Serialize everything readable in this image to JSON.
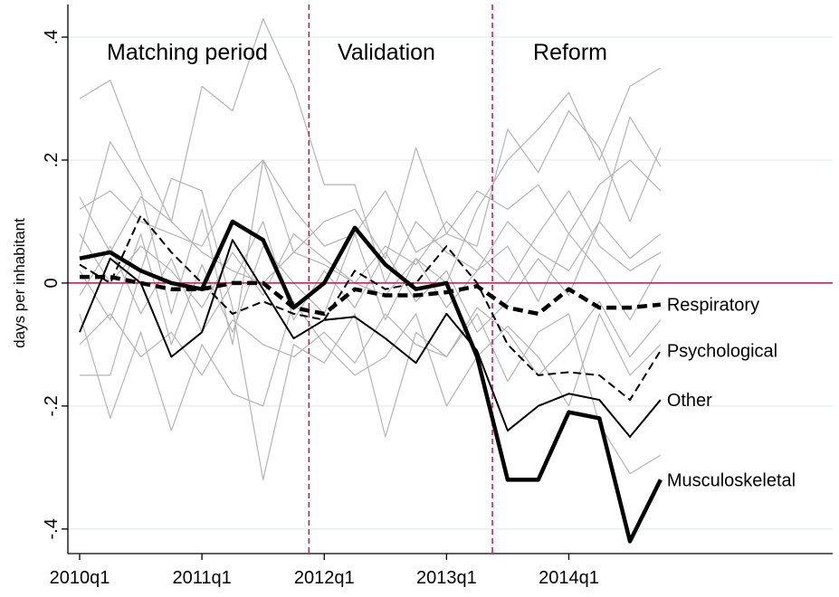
{
  "chart_data": {
    "type": "line",
    "y_label": "days per inhabitant",
    "categories": [
      "2010q1",
      null,
      null,
      null,
      "2011q1",
      null,
      null,
      null,
      "2012q1",
      null,
      null,
      null,
      "2013q1",
      null,
      null,
      null,
      "2014q1",
      null,
      null,
      null
    ],
    "ylim": [
      -0.44,
      0.453
    ],
    "yticks": [
      {
        "value": 0.4,
        "label": ".4"
      },
      {
        "value": 0.2,
        "label": ".2"
      },
      0,
      {
        "value": -0.2,
        "label": "-.2"
      },
      {
        "value": -0.4,
        "label": "-.4"
      }
    ],
    "grid": true,
    "zero_line_color": "#c8104e",
    "vlines": [
      7,
      13
    ],
    "annotations": [
      "Matching period",
      "Validation",
      "Reform"
    ],
    "series": [
      {
        "name": "Respiratory",
        "color": "#000000",
        "style": "thick-dashed",
        "values": [
          0.01,
          0.01,
          0.0,
          -0.01,
          -0.01,
          0.0,
          0.0,
          -0.04,
          -0.05,
          -0.01,
          -0.02,
          -0.02,
          -0.015,
          -0.005,
          -0.04,
          -0.05,
          -0.01,
          -0.04,
          -0.04,
          -0.035
        ]
      },
      {
        "name": "Psychological",
        "color": "#000000",
        "style": "dashed",
        "values": [
          0.03,
          0.0,
          0.11,
          0.05,
          0.0,
          -0.05,
          -0.03,
          -0.05,
          -0.06,
          0.02,
          -0.01,
          0.0,
          0.06,
          0.0,
          -0.1,
          -0.15,
          -0.145,
          -0.15,
          -0.19,
          -0.11
        ]
      },
      {
        "name": "Other",
        "color": "#000000",
        "style": "solid",
        "values": [
          -0.08,
          0.04,
          0.0,
          -0.12,
          -0.08,
          0.07,
          -0.01,
          -0.09,
          -0.06,
          -0.055,
          -0.09,
          -0.13,
          -0.05,
          -0.11,
          -0.24,
          -0.2,
          -0.18,
          -0.19,
          -0.25,
          -0.19
        ]
      },
      {
        "name": "Musculoskeletal",
        "color": "#000000",
        "style": "thick",
        "values": [
          0.04,
          0.05,
          0.02,
          0.0,
          -0.01,
          0.1,
          0.07,
          -0.04,
          0.0,
          0.09,
          0.03,
          -0.01,
          0.0,
          -0.12,
          -0.32,
          -0.32,
          -0.21,
          -0.22,
          -0.42,
          -0.32
        ]
      }
    ],
    "placebo_color": "#b4b4b4",
    "placebo_series": [
      [
        0.3,
        0.33,
        0.2,
        0.1,
        0.05,
        0.02,
        0.0,
        0.05,
        0.03,
        0.0,
        -0.02,
        0.04,
        0.0,
        0.12,
        0.2,
        0.25,
        0.31,
        0.2,
        0.32,
        0.35
      ],
      [
        0.14,
        0.05,
        0.14,
        0.1,
        0.32,
        0.28,
        0.43,
        0.32,
        0.16,
        0.16,
        0.0,
        0.1,
        0.05,
        0.02,
        0.1,
        0.05,
        0.02,
        0.1,
        0.27,
        0.19
      ],
      [
        -0.15,
        -0.15,
        0.02,
        0.17,
        0.15,
        -0.04,
        -0.32,
        -0.1,
        -0.13,
        -0.05,
        -0.25,
        -0.08,
        -0.12,
        -0.05,
        -0.16,
        -0.08,
        -0.05,
        -0.23,
        -0.31,
        -0.28
      ],
      [
        0.05,
        0.23,
        0.15,
        -0.05,
        0.12,
        -0.1,
        0.2,
        0.05,
        0.1,
        0.12,
        0.04,
        0.22,
        0.08,
        0.06,
        0.25,
        0.18,
        0.28,
        0.22,
        0.1,
        0.22
      ],
      [
        -0.05,
        -0.22,
        -0.08,
        -0.24,
        -0.1,
        -0.18,
        -0.2,
        -0.03,
        -0.1,
        -0.15,
        -0.12,
        -0.05,
        -0.2,
        -0.12,
        -0.07,
        -0.12,
        -0.2,
        -0.05,
        -0.15,
        -0.1
      ],
      [
        0.08,
        0.0,
        0.06,
        0.02,
        -0.04,
        0.05,
        -0.02,
        0.08,
        0.04,
        0.0,
        0.06,
        0.03,
        0.1,
        0.05,
        0.0,
        0.08,
        0.15,
        0.06,
        0.02,
        0.05
      ],
      [
        -0.02,
        0.06,
        -0.05,
        0.04,
        -0.08,
        0.0,
        0.1,
        -0.06,
        0.02,
        -0.04,
        0.05,
        -0.03,
        0.02,
        -0.08,
        -0.03,
        0.04,
        -0.02,
        0.1,
        0.04,
        0.08
      ],
      [
        0.12,
        0.15,
        0.1,
        0.08,
        0.06,
        0.15,
        0.2,
        0.12,
        0.06,
        0.08,
        0.15,
        0.05,
        0.08,
        0.15,
        0.12,
        0.16,
        0.08,
        0.16,
        0.2,
        0.15
      ],
      [
        -0.1,
        -0.05,
        -0.12,
        -0.08,
        -0.15,
        -0.06,
        -0.1,
        -0.12,
        -0.08,
        -0.13,
        -0.05,
        -0.1,
        -0.12,
        -0.04,
        -0.08,
        -0.15,
        -0.1,
        -0.03,
        -0.12,
        -0.06
      ],
      [
        0.02,
        -0.06,
        0.08,
        -0.1,
        0.03,
        -0.08,
        0.06,
        0.0,
        -0.05,
        0.08,
        -0.06,
        0.04,
        -0.04,
        0.02,
        0.06,
        -0.03,
        0.08,
        0.02,
        -0.06,
        0.03
      ]
    ]
  }
}
